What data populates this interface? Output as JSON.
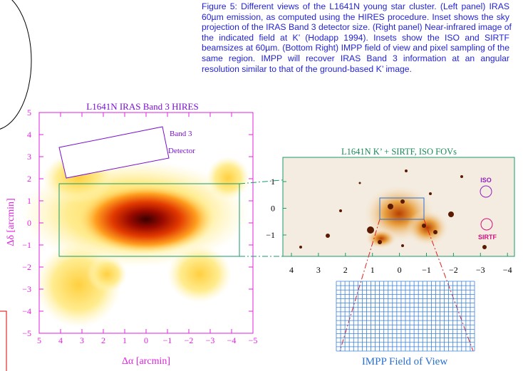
{
  "caption": [
    "Figure 5: Different views of the L1641N young star cluster. (Left panel) IRAS",
    "60µm emission, as computed using the HIRES procedure. Inset shows the sky",
    "projection of the IRAS Band 3 detector size. (Right panel) Near-infrared image of",
    "the indicated field at K’ (Hodapp 1994). Insets show the ISO and SIRTF",
    "beamsizes at 60µm. (Bottom Right) IMPP field of view and pixel sampling of the",
    "same region. IMPP will recover IRAS Band 3 information at an angular",
    "resolution similar to that of the ground-based K’ image."
  ],
  "left_panel": {
    "title": "L1641N IRAS Band 3 HIRES",
    "inset_labels": [
      "Band 3",
      "Detector"
    ],
    "xlabel": "Δα [arcmin]",
    "ylabel": "Δδ [arcmin]",
    "xticks": [
      "5",
      "4",
      "3",
      "2",
      "1",
      "0",
      "−1",
      "−2",
      "−3",
      "−4",
      "−5"
    ],
    "yticks": [
      "5",
      "4",
      "3",
      "2",
      "1",
      "0",
      "−1",
      "−2",
      "−3",
      "−4",
      "−5"
    ]
  },
  "right_panel": {
    "title": "L1641N K’ + SIRTF, ISO FOVs",
    "iso_label": "ISO",
    "sirtf_label": "SIRTF",
    "xticks": [
      "4",
      "3",
      "2",
      "1",
      "0",
      "−1",
      "−2",
      "−3",
      "−4"
    ],
    "yticks": [
      "1",
      "0",
      "−1"
    ]
  },
  "bottom_panel": {
    "label": "IMPP Field of View"
  }
}
